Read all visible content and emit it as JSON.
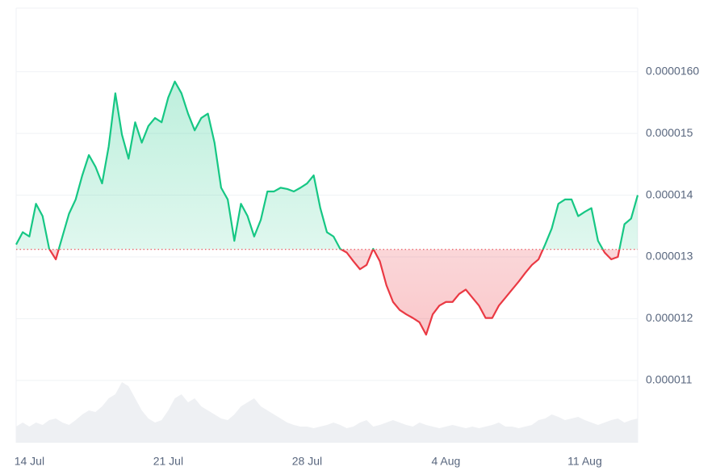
{
  "chart_data": {
    "type": "line",
    "categories": [
      null,
      null,
      "14 Jul",
      null,
      null,
      null,
      null,
      null,
      null,
      null,
      null,
      null,
      null,
      null,
      null,
      null,
      null,
      null,
      null,
      null,
      null,
      null,
      null,
      "21 Jul",
      null,
      null,
      null,
      null,
      null,
      null,
      null,
      null,
      null,
      null,
      null,
      null,
      null,
      null,
      null,
      null,
      null,
      null,
      null,
      null,
      "28 Jul",
      null,
      null,
      null,
      null,
      null,
      null,
      null,
      null,
      null,
      null,
      null,
      null,
      null,
      null,
      null,
      null,
      null,
      null,
      null,
      null,
      "4 Aug",
      null,
      null,
      null,
      null,
      null,
      null,
      null,
      null,
      null,
      null,
      null,
      null,
      null,
      null,
      null,
      null,
      null,
      null,
      null,
      null,
      "11 Aug",
      null,
      null,
      null,
      null,
      null,
      null,
      null,
      null
    ],
    "values": [
      1.32e-05,
      1.34e-05,
      1.333e-05,
      1.386e-05,
      1.366e-05,
      1.313e-05,
      1.296e-05,
      1.333e-05,
      1.37e-05,
      1.393e-05,
      1.432e-05,
      1.465e-05,
      1.446e-05,
      1.419e-05,
      1.479e-05,
      1.565e-05,
      1.498e-05,
      1.459e-05,
      1.518e-05,
      1.485e-05,
      1.512e-05,
      1.525e-05,
      1.518e-05,
      1.558e-05,
      1.584e-05,
      1.565e-05,
      1.532e-05,
      1.505e-05,
      1.525e-05,
      1.532e-05,
      1.485e-05,
      1.412e-05,
      1.393e-05,
      1.326e-05,
      1.386e-05,
      1.366e-05,
      1.333e-05,
      1.36e-05,
      1.406e-05,
      1.406e-05,
      1.412e-05,
      1.41e-05,
      1.406e-05,
      1.412e-05,
      1.419e-05,
      1.432e-05,
      1.379e-05,
      1.34e-05,
      1.333e-05,
      1.313e-05,
      1.307e-05,
      1.293e-05,
      1.28e-05,
      1.287e-05,
      1.313e-05,
      1.293e-05,
      1.254e-05,
      1.227e-05,
      1.214e-05,
      1.207e-05,
      1.201e-05,
      1.194e-05,
      1.174e-05,
      1.207e-05,
      1.221e-05,
      1.227e-05,
      1.227e-05,
      1.24e-05,
      1.247e-05,
      1.234e-05,
      1.221e-05,
      1.201e-05,
      1.201e-05,
      1.221e-05,
      1.234e-05,
      1.247e-05,
      1.26e-05,
      1.274e-05,
      1.287e-05,
      1.296e-05,
      1.32e-05,
      1.346e-05,
      1.386e-05,
      1.393e-05,
      1.393e-05,
      1.366e-05,
      1.373e-05,
      1.379e-05,
      1.326e-05,
      1.307e-05,
      1.296e-05,
      1.3e-05,
      1.353e-05,
      1.362e-05,
      1.4e-05
    ],
    "baseline": 1.312e-05,
    "color_up": "#16c784",
    "color_down": "#ea3943",
    "volume": {
      "color": "#eef0f3",
      "values": [
        20,
        25,
        20,
        25,
        22,
        28,
        30,
        25,
        22,
        28,
        35,
        40,
        38,
        45,
        55,
        60,
        75,
        70,
        55,
        40,
        30,
        25,
        28,
        40,
        55,
        60,
        50,
        55,
        45,
        40,
        35,
        30,
        28,
        35,
        45,
        50,
        55,
        45,
        40,
        35,
        30,
        25,
        22,
        20,
        20,
        18,
        20,
        22,
        25,
        22,
        18,
        20,
        25,
        28,
        20,
        22,
        25,
        28,
        25,
        22,
        20,
        25,
        22,
        20,
        18,
        20,
        22,
        20,
        18,
        20,
        18,
        20,
        22,
        25,
        20,
        20,
        18,
        20,
        22,
        28,
        30,
        35,
        32,
        28,
        30,
        32,
        28,
        25,
        22,
        25,
        28,
        30,
        25,
        28,
        30
      ]
    },
    "ylim": [
      9.99e-06,
      1.703e-05
    ],
    "yticks": [
      1.1e-05,
      1.2e-05,
      1.3e-05,
      1.4e-05,
      1.5e-05,
      {
        "value": 1.6e-05,
        "label": "0.0000160"
      }
    ],
    "grid": true
  }
}
